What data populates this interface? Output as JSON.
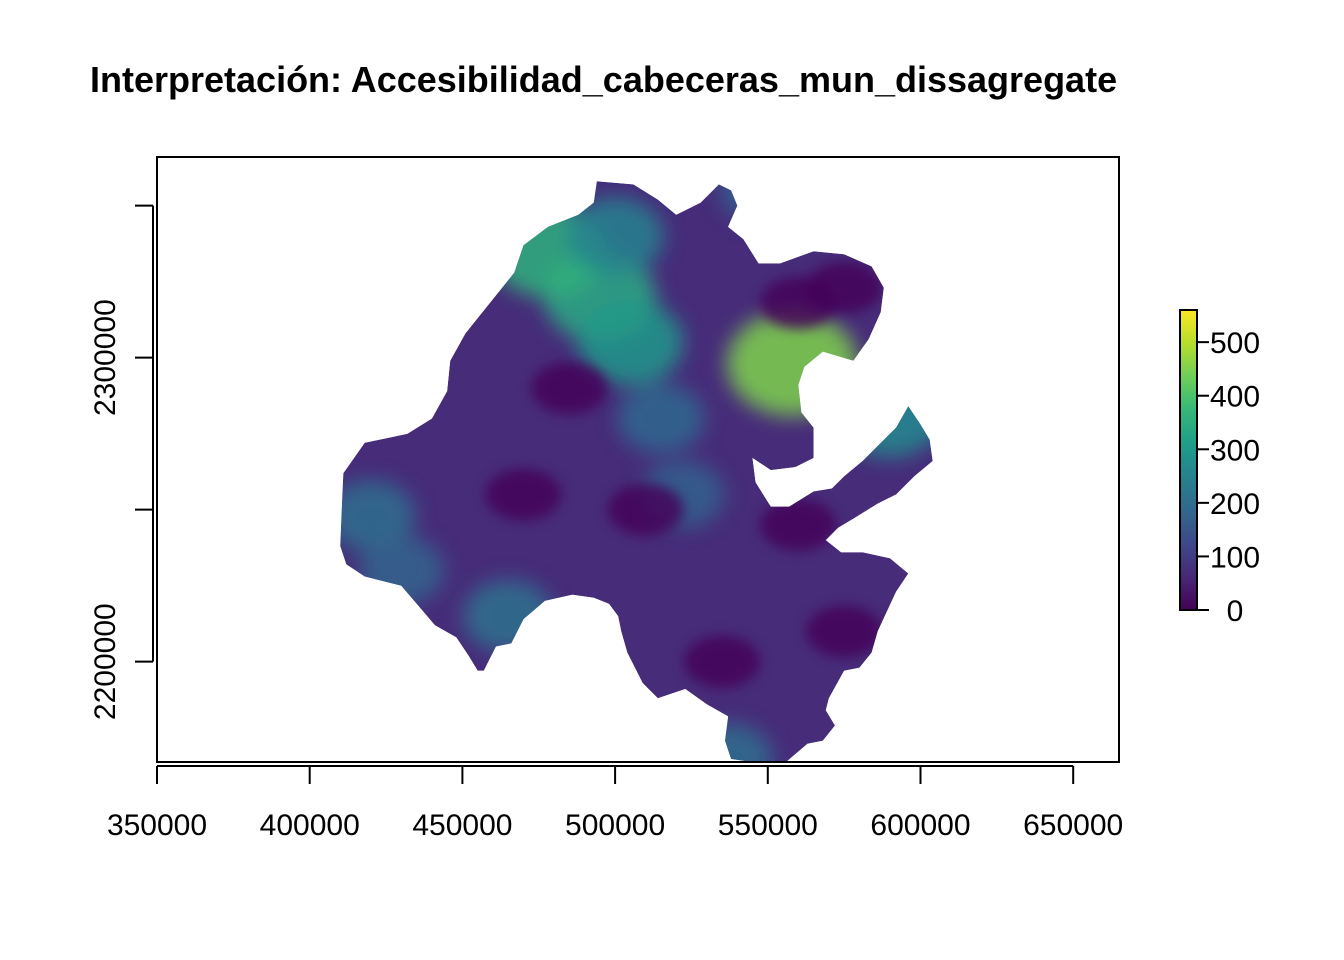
{
  "chart_data": {
    "type": "heatmap",
    "title": "Interpretación:  Accesibilidad_cabeceras_mun_dissagregate",
    "xlabel": "",
    "ylabel": "",
    "x_ticks": [
      350000,
      400000,
      450000,
      500000,
      550000,
      600000,
      650000
    ],
    "y_ticks": [
      2200000,
      2300000
    ],
    "x_range": [
      350000,
      665000
    ],
    "y_range": [
      2167000,
      2366000
    ],
    "legend": {
      "placement": "right",
      "ticks": [
        0,
        100,
        200,
        300,
        400,
        500
      ],
      "range": [
        0,
        560
      ],
      "colormap": [
        "#440154",
        "#482878",
        "#3e4989",
        "#31688e",
        "#26828e",
        "#1f9e89",
        "#35b779",
        "#6ece58",
        "#b5de2b",
        "#fde725"
      ]
    },
    "region_outline_xy": [
      [
        411,
        2262
      ],
      [
        418,
        2272
      ],
      [
        432,
        2275
      ],
      [
        440,
        2280
      ],
      [
        445,
        2289
      ],
      [
        446,
        2299
      ],
      [
        451,
        2308
      ],
      [
        459,
        2318
      ],
      [
        467,
        2328
      ],
      [
        470,
        2337
      ],
      [
        478,
        2343
      ],
      [
        488,
        2347
      ],
      [
        493,
        2351
      ],
      [
        494,
        2358
      ],
      [
        506,
        2357
      ],
      [
        514,
        2352
      ],
      [
        520,
        2347
      ],
      [
        528,
        2351
      ],
      [
        534,
        2357
      ],
      [
        538,
        2355
      ],
      [
        540,
        2350
      ],
      [
        537,
        2343
      ],
      [
        542,
        2339
      ],
      [
        547,
        2331
      ],
      [
        554,
        2331
      ],
      [
        565,
        2335
      ],
      [
        575,
        2334
      ],
      [
        584,
        2330
      ],
      [
        588,
        2323
      ],
      [
        587,
        2315
      ],
      [
        583,
        2306
      ],
      [
        578,
        2299
      ],
      [
        568,
        2302
      ],
      [
        562,
        2297
      ],
      [
        560,
        2291
      ],
      [
        561,
        2282
      ],
      [
        565,
        2277
      ],
      [
        565,
        2267
      ],
      [
        559,
        2264
      ],
      [
        551,
        2263
      ],
      [
        545,
        2267
      ],
      [
        546,
        2259
      ],
      [
        551,
        2251
      ],
      [
        557,
        2251
      ],
      [
        565,
        2256
      ],
      [
        571,
        2257
      ],
      [
        575,
        2261
      ],
      [
        581,
        2266
      ],
      [
        592,
        2277
      ],
      [
        596,
        2284
      ],
      [
        600,
        2278
      ],
      [
        603,
        2273
      ],
      [
        604,
        2266
      ],
      [
        598,
        2261
      ],
      [
        592,
        2255
      ],
      [
        586,
        2252
      ],
      [
        578,
        2247
      ],
      [
        573,
        2244
      ],
      [
        569,
        2240
      ],
      [
        574,
        2236
      ],
      [
        581,
        2236
      ],
      [
        590,
        2234
      ],
      [
        596,
        2229
      ],
      [
        592,
        2223
      ],
      [
        586,
        2210
      ],
      [
        584,
        2203
      ],
      [
        580,
        2198
      ],
      [
        575,
        2197
      ],
      [
        570,
        2188
      ],
      [
        569,
        2184
      ],
      [
        572,
        2179
      ],
      [
        568,
        2174
      ],
      [
        563,
        2173
      ],
      [
        556,
        2167
      ],
      [
        545,
        2167
      ],
      [
        538,
        2168
      ],
      [
        536,
        2174
      ],
      [
        537,
        2182
      ],
      [
        530,
        2186
      ],
      [
        523,
        2191
      ],
      [
        514,
        2188
      ],
      [
        509,
        2193
      ],
      [
        504,
        2203
      ],
      [
        502,
        2210
      ],
      [
        501,
        2215
      ],
      [
        498,
        2219
      ],
      [
        493,
        2221
      ],
      [
        486,
        2222
      ],
      [
        477,
        2220
      ],
      [
        470,
        2214
      ],
      [
        466,
        2206
      ],
      [
        461,
        2205
      ],
      [
        457,
        2197
      ],
      [
        455,
        2197
      ],
      [
        452,
        2202
      ],
      [
        448,
        2208
      ],
      [
        441,
        2212
      ],
      [
        430,
        2225
      ],
      [
        418,
        2228
      ],
      [
        412,
        2232
      ],
      [
        410,
        2238
      ]
    ],
    "hotspots_xy_value": [
      [
        495,
        2320,
        340
      ],
      [
        505,
        2305,
        300
      ],
      [
        478,
        2335,
        360
      ],
      [
        500,
        2340,
        250
      ],
      [
        558,
        2298,
        450
      ],
      [
        590,
        2280,
        260
      ],
      [
        420,
        2248,
        200
      ],
      [
        430,
        2230,
        180
      ],
      [
        465,
        2215,
        210
      ],
      [
        537,
        2168,
        200
      ],
      [
        548,
        2355,
        170
      ],
      [
        600,
        2285,
        240
      ],
      [
        515,
        2280,
        190
      ],
      [
        522,
        2255,
        170
      ]
    ],
    "lowspots_xy": [
      [
        485,
        2290
      ],
      [
        510,
        2250
      ],
      [
        560,
        2245
      ],
      [
        575,
        2210
      ],
      [
        470,
        2255
      ],
      [
        535,
        2200
      ],
      [
        560,
        2318
      ],
      [
        575,
        2323
      ]
    ]
  }
}
